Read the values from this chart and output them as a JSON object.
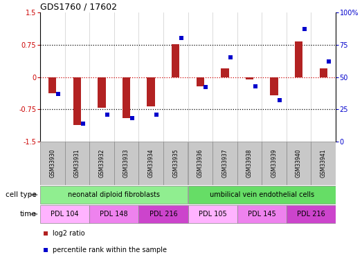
{
  "title": "GDS1760 / 17602",
  "samples": [
    "GSM33930",
    "GSM33931",
    "GSM33932",
    "GSM33933",
    "GSM33934",
    "GSM33935",
    "GSM33936",
    "GSM33937",
    "GSM33938",
    "GSM33939",
    "GSM33940",
    "GSM33941"
  ],
  "log2_ratio": [
    -0.38,
    -1.12,
    -0.72,
    -0.95,
    -0.68,
    0.77,
    -0.22,
    0.2,
    -0.06,
    -0.42,
    0.82,
    0.2
  ],
  "percentile_rank": [
    37,
    14,
    21,
    18,
    21,
    80,
    42,
    65,
    43,
    32,
    87,
    62
  ],
  "bar_color": "#B22222",
  "dot_color": "#0000CC",
  "ylim_left": [
    -1.5,
    1.5
  ],
  "ylim_right": [
    0,
    100
  ],
  "yticks_left": [
    -1.5,
    -0.75,
    0,
    0.75,
    1.5
  ],
  "ytick_labels_left": [
    "-1.5",
    "-0.75",
    "0",
    "0.75",
    "1.5"
  ],
  "yticks_right": [
    0,
    25,
    50,
    75,
    100
  ],
  "ytick_labels_right": [
    "0",
    "25",
    "50",
    "75",
    "100%"
  ],
  "hlines": [
    -0.75,
    0.0,
    0.75
  ],
  "cell_type_label": "cell type",
  "time_label": "time",
  "cell_groups": [
    {
      "label": "neonatal diploid fibroblasts",
      "start": 0,
      "end": 6,
      "color": "#90EE90"
    },
    {
      "label": "umbilical vein endothelial cells",
      "start": 6,
      "end": 12,
      "color": "#66DD66"
    }
  ],
  "time_groups": [
    {
      "label": "PDL 104",
      "start": 0,
      "end": 2,
      "color": "#FFB3FF"
    },
    {
      "label": "PDL 148",
      "start": 2,
      "end": 4,
      "color": "#EE82EE"
    },
    {
      "label": "PDL 216",
      "start": 4,
      "end": 6,
      "color": "#CC44CC"
    },
    {
      "label": "PDL 105",
      "start": 6,
      "end": 8,
      "color": "#FFB3FF"
    },
    {
      "label": "PDL 145",
      "start": 8,
      "end": 10,
      "color": "#EE82EE"
    },
    {
      "label": "PDL 216",
      "start": 10,
      "end": 12,
      "color": "#CC44CC"
    }
  ],
  "legend_bar_label": "log2 ratio",
  "legend_dot_label": "percentile rank within the sample",
  "sample_box_color": "#C8C8C8",
  "bg_color": "#FFFFFF"
}
